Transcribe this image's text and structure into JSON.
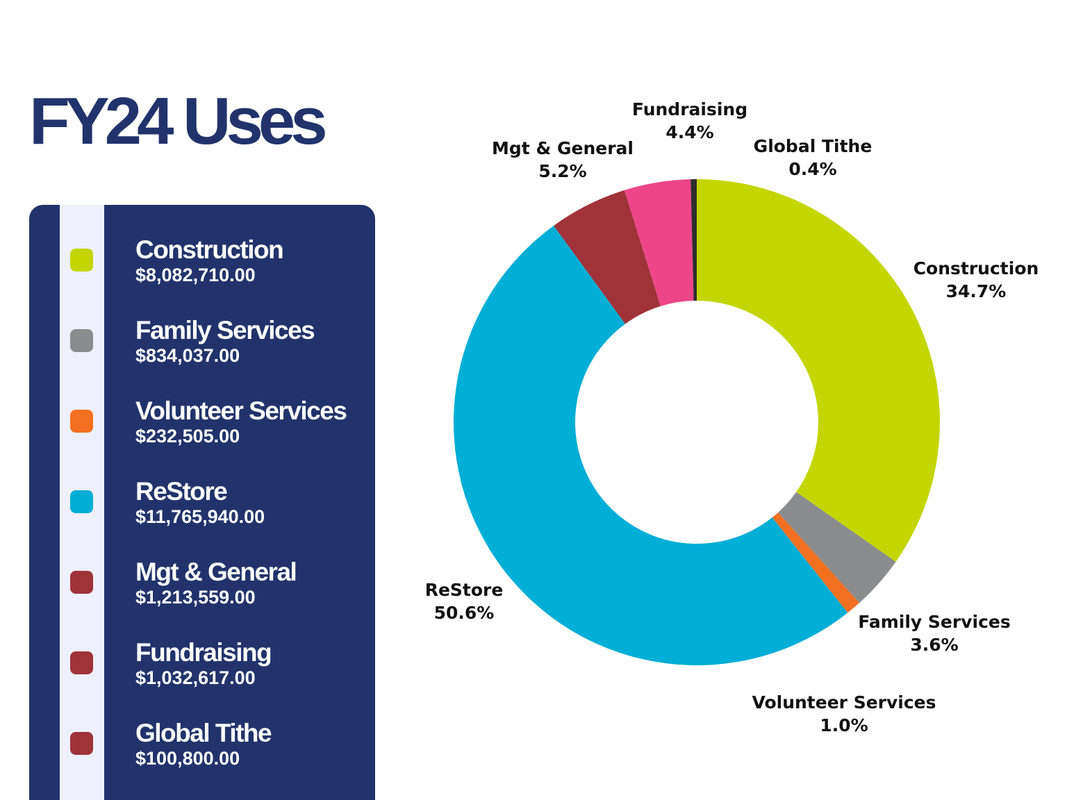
{
  "chart_data": {
    "type": "pie",
    "donut": true,
    "title": "FY24 Uses",
    "categories": [
      "Construction",
      "Family Services",
      "Volunteer Services",
      "ReStore",
      "Mgt & General",
      "Fundraising",
      "Global Tithe"
    ],
    "values": [
      34.7,
      3.6,
      1.0,
      50.6,
      5.2,
      4.4,
      0.4
    ],
    "value_labels": [
      "34.7%",
      "3.6%",
      "1.0%",
      "50.6%",
      "5.2%",
      "4.4%",
      "0.4%"
    ],
    "colors": [
      "#c3d600",
      "#8a8c8e",
      "#f37021",
      "#00aed6",
      "#a0323a",
      "#ec4688",
      "#2d2d2d"
    ],
    "legend_colors": [
      "#c3d600",
      "#8a8c8e",
      "#f37021",
      "#00aed6",
      "#a0323a",
      "#a0323a",
      "#a0323a"
    ],
    "legend_amounts": [
      "$8,082,710.00",
      "$834,037.00",
      "$232,505.00",
      "$11,765,940.00",
      "$1,213,559.00",
      "$1,032,617.00",
      "$100,800.00"
    ]
  }
}
